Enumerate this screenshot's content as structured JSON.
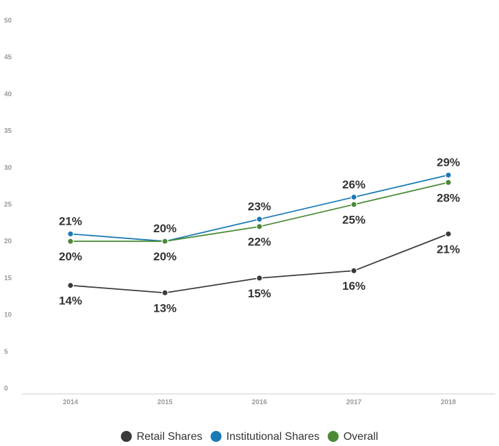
{
  "chart_data": {
    "type": "line",
    "title": "",
    "xlabel": "",
    "ylabel": "",
    "x": [
      "2014",
      "2015",
      "2016",
      "2017",
      "2018"
    ],
    "ylim": [
      0,
      50
    ],
    "y_ticks": [
      0,
      5,
      10,
      15,
      20,
      25,
      30,
      35,
      40,
      45,
      50
    ],
    "grid": false,
    "legend_position": "bottom",
    "series": [
      {
        "name": "Retail Shares",
        "color": "#3a3a3a",
        "values": [
          14,
          13,
          15,
          16,
          21
        ],
        "labels": [
          "14%",
          "13%",
          "15%",
          "16%",
          "21%"
        ],
        "label_positions": [
          "below",
          "below",
          "below",
          "below",
          "below"
        ]
      },
      {
        "name": "Institutional Shares",
        "color": "#1a7ab5",
        "values": [
          21,
          20,
          23,
          26,
          29
        ],
        "labels": [
          "21%",
          "20%",
          "23%",
          "26%",
          "29%"
        ],
        "label_positions": [
          "above",
          "above",
          "above",
          "above",
          "above"
        ]
      },
      {
        "name": "Overall",
        "color": "#4a8a35",
        "values": [
          20,
          20,
          22,
          25,
          28
        ],
        "labels": [
          "20%",
          "20%",
          "22%",
          "25%",
          "28%"
        ],
        "label_positions": [
          "below",
          "below",
          "below",
          "below",
          "below"
        ]
      }
    ]
  }
}
